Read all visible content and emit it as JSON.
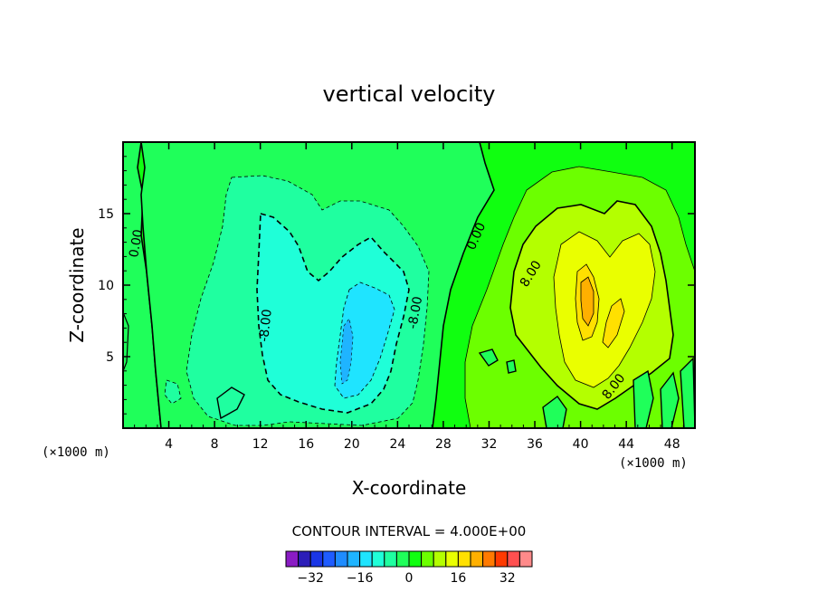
{
  "chart_data": {
    "type": "contour",
    "title": "vertical velocity",
    "xlabel": "X-coordinate",
    "ylabel": "Z-coordinate",
    "x_unit_left": "(×1000 m)",
    "x_unit_right": "(×1000 m)",
    "xlim": [
      0,
      50
    ],
    "ylim": [
      0,
      20
    ],
    "x_ticks": [
      4,
      8,
      12,
      16,
      20,
      24,
      28,
      32,
      36,
      40,
      44,
      48
    ],
    "y_ticks": [
      5,
      10,
      15
    ],
    "contour_interval_text": "CONTOUR INTERVAL = 4.000E+00",
    "contour_labels": [
      "0.00",
      "-8.00",
      "-8.00",
      "0.00",
      "8.00",
      "8.00"
    ],
    "colorbar": {
      "levels": [
        -36,
        -32,
        -28,
        -24,
        -20,
        -16,
        -12,
        -8,
        -4,
        0,
        4,
        8,
        12,
        16,
        20,
        24,
        28,
        32,
        36
      ],
      "tick_labels": [
        "-32",
        "-16",
        "0",
        "16",
        "32"
      ],
      "tick_values": [
        -32,
        -16,
        0,
        16,
        32
      ],
      "colors": [
        "#8a1cc4",
        "#2c1eb8",
        "#1a36e6",
        "#1f5cff",
        "#1f8cff",
        "#1fb4ff",
        "#1fe4ff",
        "#1fffd8",
        "#1fffa0",
        "#1fff5a",
        "#10ff10",
        "#6cff00",
        "#b4ff00",
        "#eaff00",
        "#ffe000",
        "#ffb000",
        "#ff7a00",
        "#ff3a00",
        "#ff5050",
        "#ff8a8a"
      ]
    }
  }
}
